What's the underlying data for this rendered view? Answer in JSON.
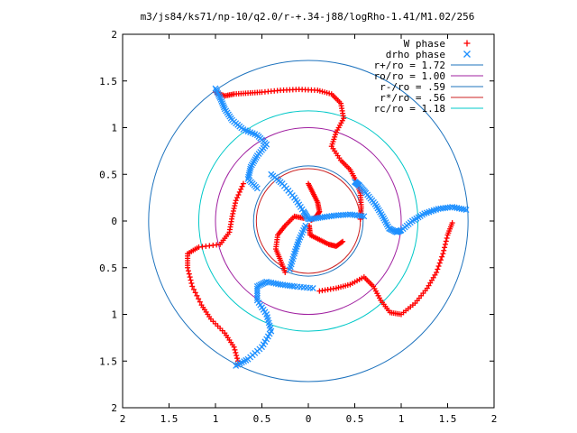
{
  "chart_data": {
    "type": "scatter",
    "title": "m3/js84/ks71/np-10/q2.0/r-+.34-j88/logRho-1.41/M1.02/256",
    "xlim": [
      -2,
      2
    ],
    "ylim": [
      -2,
      2
    ],
    "x_tick_labels": [
      "2",
      "1.5",
      "1",
      "0.5",
      "0",
      "0.5",
      "1",
      "1.5",
      "2"
    ],
    "y_tick_labels": [
      "2",
      "1.5",
      "1",
      "0.5",
      "0",
      "0.5",
      "1",
      "1.5",
      "2"
    ],
    "legend_position": "top-right",
    "grid": false,
    "series": [
      {
        "name": "W phase",
        "marker": "plus",
        "color": "#ff0000",
        "arms": [
          [
            [
              -1.0,
              1.38
            ],
            [
              -0.9,
              1.34
            ],
            [
              -0.8,
              1.36
            ],
            [
              -0.65,
              1.37
            ],
            [
              -0.5,
              1.38
            ],
            [
              -0.3,
              1.4
            ],
            [
              -0.1,
              1.41
            ],
            [
              0.1,
              1.4
            ],
            [
              0.25,
              1.36
            ],
            [
              0.35,
              1.26
            ],
            [
              0.38,
              1.1
            ],
            [
              0.3,
              0.95
            ],
            [
              0.25,
              0.8
            ],
            [
              0.35,
              0.65
            ],
            [
              0.45,
              0.55
            ],
            [
              0.52,
              0.42
            ],
            [
              0.56,
              0.3
            ],
            [
              0.57,
              0.15
            ],
            [
              0.56,
              0.02
            ]
          ],
          [
            [
              0.03,
              0.01
            ],
            [
              0.08,
              0.04
            ],
            [
              0.12,
              0.1
            ],
            [
              0.1,
              0.2
            ],
            [
              0.05,
              0.3
            ],
            [
              0.0,
              0.4
            ]
          ],
          [
            [
              1.55,
              -0.02
            ],
            [
              1.5,
              -0.15
            ],
            [
              1.45,
              -0.35
            ],
            [
              1.38,
              -0.55
            ],
            [
              1.28,
              -0.72
            ],
            [
              1.15,
              -0.88
            ],
            [
              1.0,
              -1.0
            ],
            [
              0.88,
              -0.98
            ],
            [
              0.78,
              -0.85
            ],
            [
              0.7,
              -0.7
            ],
            [
              0.6,
              -0.6
            ],
            [
              0.45,
              -0.68
            ],
            [
              0.3,
              -0.72
            ],
            [
              0.12,
              -0.75
            ]
          ],
          [
            [
              0.37,
              -0.22
            ],
            [
              0.3,
              -0.27
            ],
            [
              0.22,
              -0.25
            ],
            [
              0.12,
              -0.2
            ],
            [
              0.02,
              -0.15
            ],
            [
              0.01,
              -0.05
            ]
          ],
          [
            [
              -0.75,
              -1.53
            ],
            [
              -0.8,
              -1.35
            ],
            [
              -0.9,
              -1.2
            ],
            [
              -1.05,
              -1.05
            ],
            [
              -1.15,
              -0.9
            ],
            [
              -1.25,
              -0.7
            ],
            [
              -1.3,
              -0.5
            ],
            [
              -1.3,
              -0.35
            ],
            [
              -1.18,
              -0.28
            ],
            [
              -0.95,
              -0.25
            ],
            [
              -0.85,
              -0.12
            ],
            [
              -0.82,
              0.05
            ],
            [
              -0.78,
              0.22
            ],
            [
              -0.7,
              0.4
            ]
          ],
          [
            [
              -0.25,
              -0.55
            ],
            [
              -0.3,
              -0.42
            ],
            [
              -0.35,
              -0.3
            ],
            [
              -0.33,
              -0.15
            ],
            [
              -0.25,
              -0.05
            ],
            [
              -0.15,
              0.05
            ],
            [
              -0.05,
              0.03
            ]
          ]
        ]
      },
      {
        "name": "drho phase",
        "marker": "cross",
        "color": "#1e90ff",
        "arms": [
          [
            [
              -1.0,
              1.42
            ],
            [
              -0.95,
              1.32
            ],
            [
              -0.9,
              1.2
            ],
            [
              -0.82,
              1.08
            ],
            [
              -0.7,
              0.98
            ],
            [
              -0.55,
              0.92
            ],
            [
              -0.45,
              0.82
            ],
            [
              -0.55,
              0.7
            ],
            [
              -0.62,
              0.58
            ],
            [
              -0.65,
              0.45
            ],
            [
              -0.55,
              0.35
            ]
          ],
          [
            [
              -0.4,
              0.5
            ],
            [
              -0.28,
              0.4
            ],
            [
              -0.15,
              0.25
            ],
            [
              -0.05,
              0.1
            ],
            [
              0.0,
              0.02
            ]
          ],
          [
            [
              1.7,
              0.12
            ],
            [
              1.55,
              0.15
            ],
            [
              1.4,
              0.13
            ],
            [
              1.25,
              0.08
            ],
            [
              1.12,
              0.0
            ],
            [
              1.0,
              -0.1
            ],
            [
              0.95,
              -0.12
            ],
            [
              0.87,
              -0.08
            ],
            [
              0.8,
              0.05
            ],
            [
              0.72,
              0.18
            ],
            [
              0.62,
              0.3
            ],
            [
              0.55,
              0.38
            ],
            [
              0.5,
              0.42
            ]
          ],
          [
            [
              0.6,
              0.05
            ],
            [
              0.45,
              0.07
            ],
            [
              0.3,
              0.06
            ],
            [
              0.15,
              0.04
            ],
            [
              0.02,
              0.02
            ]
          ],
          [
            [
              -0.78,
              -1.55
            ],
            [
              -0.65,
              -1.48
            ],
            [
              -0.5,
              -1.35
            ],
            [
              -0.4,
              -1.18
            ],
            [
              -0.45,
              -1.0
            ],
            [
              -0.55,
              -0.85
            ],
            [
              -0.55,
              -0.7
            ],
            [
              -0.45,
              -0.65
            ],
            [
              -0.3,
              -0.68
            ],
            [
              -0.15,
              -0.7
            ],
            [
              0.05,
              -0.72
            ]
          ],
          [
            [
              -0.2,
              -0.52
            ],
            [
              -0.15,
              -0.35
            ],
            [
              -0.1,
              -0.2
            ],
            [
              -0.03,
              -0.05
            ]
          ]
        ]
      }
    ],
    "circles": [
      {
        "name": "r+/ro = 1.72",
        "r": 1.72,
        "color": "#1e73be"
      },
      {
        "name": "ro/ro = 1.00",
        "r": 1.0,
        "color": "#a020a0"
      },
      {
        "name": "r-/ro = .59",
        "r": 0.59,
        "color": "#1e73be"
      },
      {
        "name": "r*/ro = .56",
        "r": 0.56,
        "color": "#cc2222"
      },
      {
        "name": "rc/ro = 1.18",
        "r": 1.18,
        "color": "#00c8c8"
      }
    ]
  }
}
